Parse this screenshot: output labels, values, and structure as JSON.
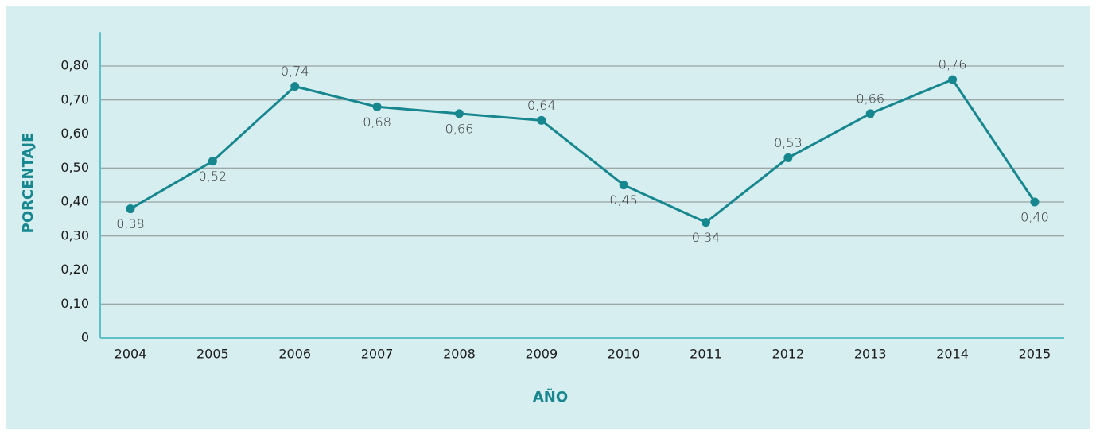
{
  "chart_data": {
    "type": "line",
    "categories": [
      "2004",
      "2005",
      "2006",
      "2007",
      "2008",
      "2009",
      "2010",
      "2011",
      "2012",
      "2013",
      "2014",
      "2015"
    ],
    "values": [
      0.38,
      0.52,
      0.74,
      0.68,
      0.66,
      0.64,
      0.45,
      0.34,
      0.53,
      0.66,
      0.76,
      0.4
    ],
    "value_labels": [
      "0,38",
      "0,52",
      "0,74",
      "0,68",
      "0,66",
      "0,64",
      "0,45",
      "0,34",
      "0,53",
      "0,66",
      "0,76",
      "0,40"
    ],
    "color": "#17878f",
    "xlabel": "AÑO",
    "ylabel": "PORCENTAJE",
    "ylim": [
      0,
      0.9
    ],
    "yticks": [
      0,
      {
        "value": 0.1,
        "label": "0,10"
      },
      {
        "value": 0.2,
        "label": "0,20"
      },
      {
        "value": 0.3,
        "label": "0,30"
      },
      {
        "value": 0.4,
        "label": "0,40"
      },
      {
        "value": 0.5,
        "label": "0,50"
      },
      {
        "value": 0.6,
        "label": "0,60"
      },
      {
        "value": 0.7,
        "label": "0,70"
      },
      {
        "value": 0.8,
        "label": "0,80"
      }
    ],
    "grid": true
  }
}
